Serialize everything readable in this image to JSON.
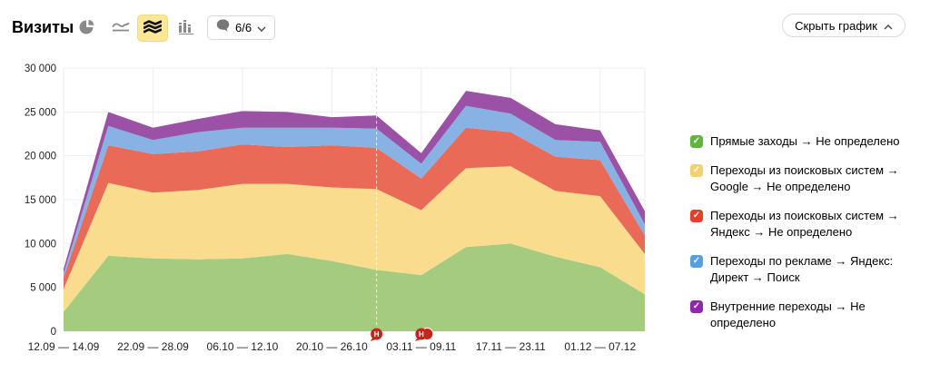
{
  "header": {
    "title": "Визиты",
    "chart_type_buttons": [
      {
        "icon": "pie-chart-icon",
        "selected": false
      },
      {
        "icon": "line-chart-icon",
        "selected": false
      },
      {
        "icon": "stacked-area-chart-icon",
        "selected": true
      },
      {
        "icon": "bar-chart-icon",
        "selected": false
      }
    ],
    "annotations_dropdown": {
      "icon": "comment-bubble-icon",
      "label": "6/6",
      "chevron": "down"
    },
    "hide_chart_label": "Скрыть график"
  },
  "legend": {
    "items": [
      {
        "label": "Прямые заходы → Не определено",
        "checkbox_color": "#60b440"
      },
      {
        "label": "Переходы из поисковых систем → Google → Не определено",
        "checkbox_color": "#f2d26e"
      },
      {
        "label": "Переходы из поисковых систем → Яндекс → Не определено",
        "checkbox_color": "#e6402c"
      },
      {
        "label": "Переходы по рекламе → Яндекс: Директ → Поиск",
        "checkbox_color": "#569fe3"
      },
      {
        "label": "Внутренние переходы → Не определено",
        "checkbox_color": "#8e27a8"
      }
    ]
  },
  "chart_data": {
    "type": "area",
    "stacked": true,
    "x_count": 14,
    "x_tick_labels": [
      {
        "i": 0,
        "label": "12.09 — 14.09"
      },
      {
        "i": 2,
        "label": "22.09 — 28.09"
      },
      {
        "i": 4,
        "label": "06.10 — 12.10"
      },
      {
        "i": 6,
        "label": "20.10 — 26.10"
      },
      {
        "i": 8,
        "label": "03.11 — 09.11"
      },
      {
        "i": 10,
        "label": "17.11 — 23.11"
      },
      {
        "i": 12,
        "label": "01.12 — 07.12"
      }
    ],
    "ylim": [
      0,
      30000
    ],
    "y_ticks": [
      {
        "v": 0,
        "label": "0"
      },
      {
        "v": 5000,
        "label": "5 000"
      },
      {
        "v": 10000,
        "label": "10 000"
      },
      {
        "v": 15000,
        "label": "15 000"
      },
      {
        "v": 20000,
        "label": "20 000"
      },
      {
        "v": 25000,
        "label": "25 000"
      },
      {
        "v": 30000,
        "label": "30 000"
      }
    ],
    "grid": true,
    "legend_position": "right",
    "series": [
      {
        "name": "Прямые заходы → Не определено",
        "color": "#a4cb7e",
        "values": [
          2200,
          8600,
          8300,
          8200,
          8300,
          8800,
          8000,
          7000,
          6400,
          9600,
          10000,
          8500,
          7300,
          4200
        ]
      },
      {
        "name": "Переходы из поисковых систем → Google → Не определено",
        "color": "#f9dc8d",
        "values": [
          2600,
          8300,
          7500,
          7900,
          8500,
          8000,
          8400,
          9200,
          7400,
          9000,
          8800,
          7500,
          8100,
          4600
        ]
      },
      {
        "name": "Переходы из поисковых систем → Яндекс → Не определено",
        "color": "#e96a57",
        "values": [
          1300,
          4300,
          4400,
          4400,
          4500,
          4200,
          4800,
          4700,
          3600,
          4600,
          3900,
          3900,
          4100,
          2100
        ]
      },
      {
        "name": "Переходы по рекламе → Яндекс: Директ → Поиск",
        "color": "#87b2e3",
        "values": [
          500,
          2200,
          1600,
          2200,
          1900,
          2200,
          2000,
          2200,
          1700,
          2500,
          2100,
          1900,
          2100,
          1300
        ]
      },
      {
        "name": "Внутренние переходы → Не определено",
        "color": "#9b51a5",
        "values": [
          500,
          1600,
          1400,
          1500,
          1900,
          1800,
          1200,
          1500,
          1200,
          1700,
          1800,
          1800,
          1300,
          1500
        ]
      }
    ],
    "annotation_markers": [
      {
        "i": 7,
        "label": "Н",
        "dashed_line": true,
        "double": false,
        "color": "#c4261d"
      },
      {
        "i": 8,
        "label": "Н",
        "dashed_line": false,
        "double": true,
        "color": "#c4261d"
      }
    ]
  }
}
